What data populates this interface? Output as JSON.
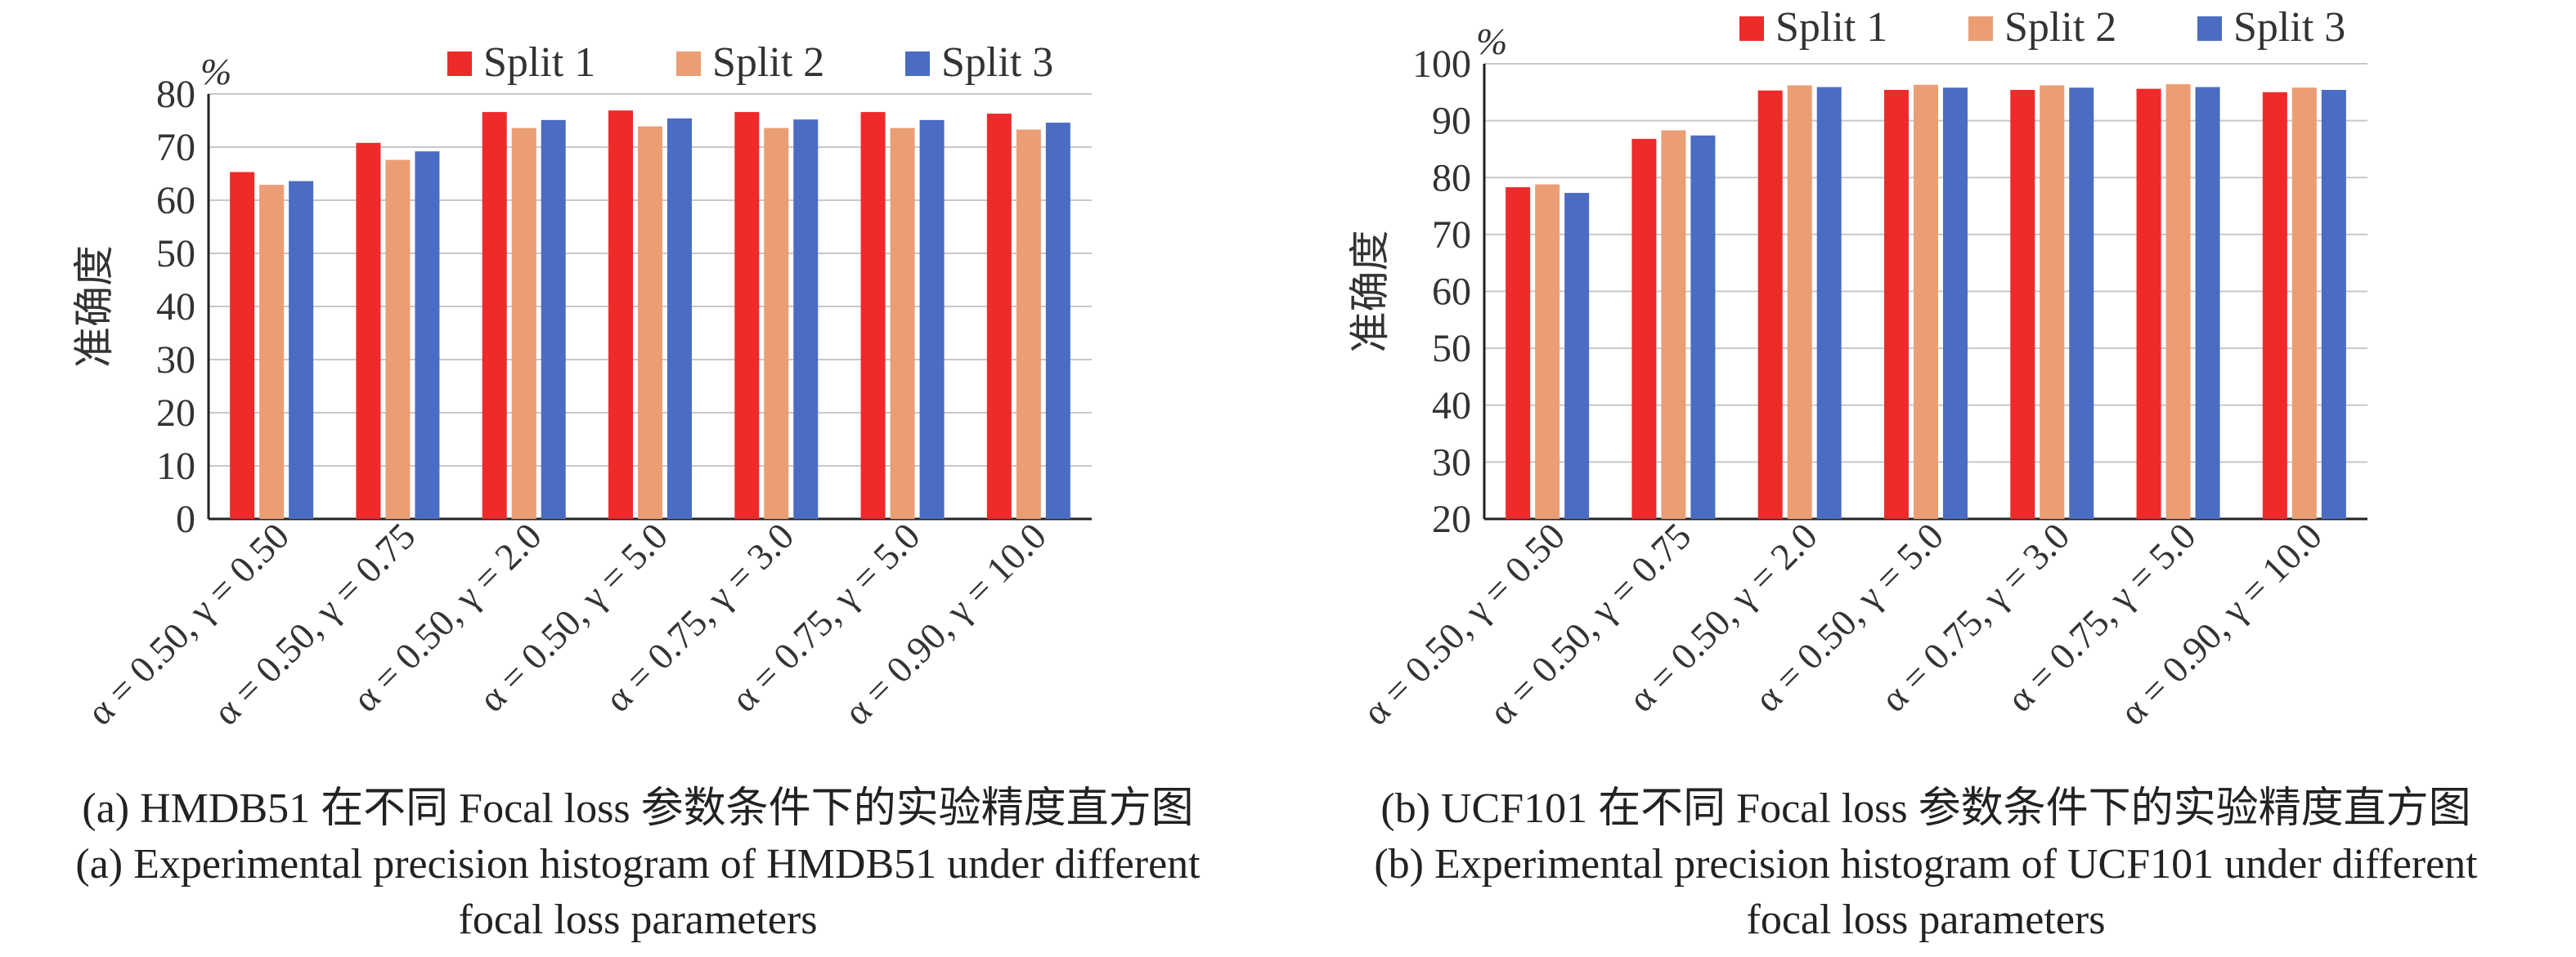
{
  "colors": {
    "split1": "#ee2a2b",
    "split2": "#eb9d74",
    "split3": "#4a6cc2",
    "grid": "#c8c8c8",
    "axis": "#222222"
  },
  "chart_data": [
    {
      "type": "bar",
      "unit_label": "%",
      "ylabel": "准确度",
      "ylim": [
        0,
        80
      ],
      "yticks": [
        0,
        10,
        20,
        30,
        40,
        50,
        60,
        70,
        80
      ],
      "grid": true,
      "legend_position": "top-right",
      "categories": [
        "α = 0.50, γ = 0.50",
        "α = 0.50, γ = 0.75",
        "α = 0.50, γ = 2.0",
        "α = 0.50, γ = 5.0",
        "α = 0.75, γ = 3.0",
        "α = 0.75, γ = 5.0",
        "α = 0.90, γ = 10.0"
      ],
      "series": [
        {
          "name": "Split 1",
          "values": [
            65.3,
            70.8,
            76.6,
            76.9,
            76.6,
            76.6,
            76.3
          ]
        },
        {
          "name": "Split 2",
          "values": [
            62.9,
            67.6,
            73.6,
            73.9,
            73.6,
            73.6,
            73.3
          ]
        },
        {
          "name": "Split 3",
          "values": [
            63.6,
            69.2,
            75.1,
            75.4,
            75.2,
            75.1,
            74.6
          ]
        }
      ],
      "caption_cn": "(a) HMDB51 在不同 Focal loss 参数条件下的实验精度直方图",
      "caption_en_1": "(a) Experimental precision histogram of HMDB51 under different",
      "caption_en_2": "focal loss parameters"
    },
    {
      "type": "bar",
      "unit_label": "%",
      "ylabel": "准确度",
      "ylim": [
        20,
        100
      ],
      "yticks": [
        20,
        30,
        40,
        50,
        60,
        70,
        80,
        90,
        100
      ],
      "grid": true,
      "legend_position": "top-right",
      "categories": [
        "α = 0.50, γ = 0.50",
        "α = 0.50, γ = 0.75",
        "α = 0.50, γ = 2.0",
        "α = 0.50, γ = 5.0",
        "α = 0.75, γ = 3.0",
        "α = 0.75, γ = 5.0",
        "α = 0.90, γ = 10.0"
      ],
      "series": [
        {
          "name": "Split 1",
          "values": [
            78.3,
            86.8,
            95.3,
            95.4,
            95.4,
            95.6,
            95.0
          ]
        },
        {
          "name": "Split 2",
          "values": [
            78.8,
            88.3,
            96.2,
            96.3,
            96.2,
            96.4,
            95.8
          ]
        },
        {
          "name": "Split 3",
          "values": [
            77.3,
            87.4,
            95.9,
            95.8,
            95.8,
            95.9,
            95.4
          ]
        }
      ],
      "caption_cn": "(b) UCF101 在不同 Focal loss 参数条件下的实验精度直方图",
      "caption_en_1": "(b) Experimental precision histogram of  UCF101 under different",
      "caption_en_2": "focal loss parameters"
    }
  ]
}
